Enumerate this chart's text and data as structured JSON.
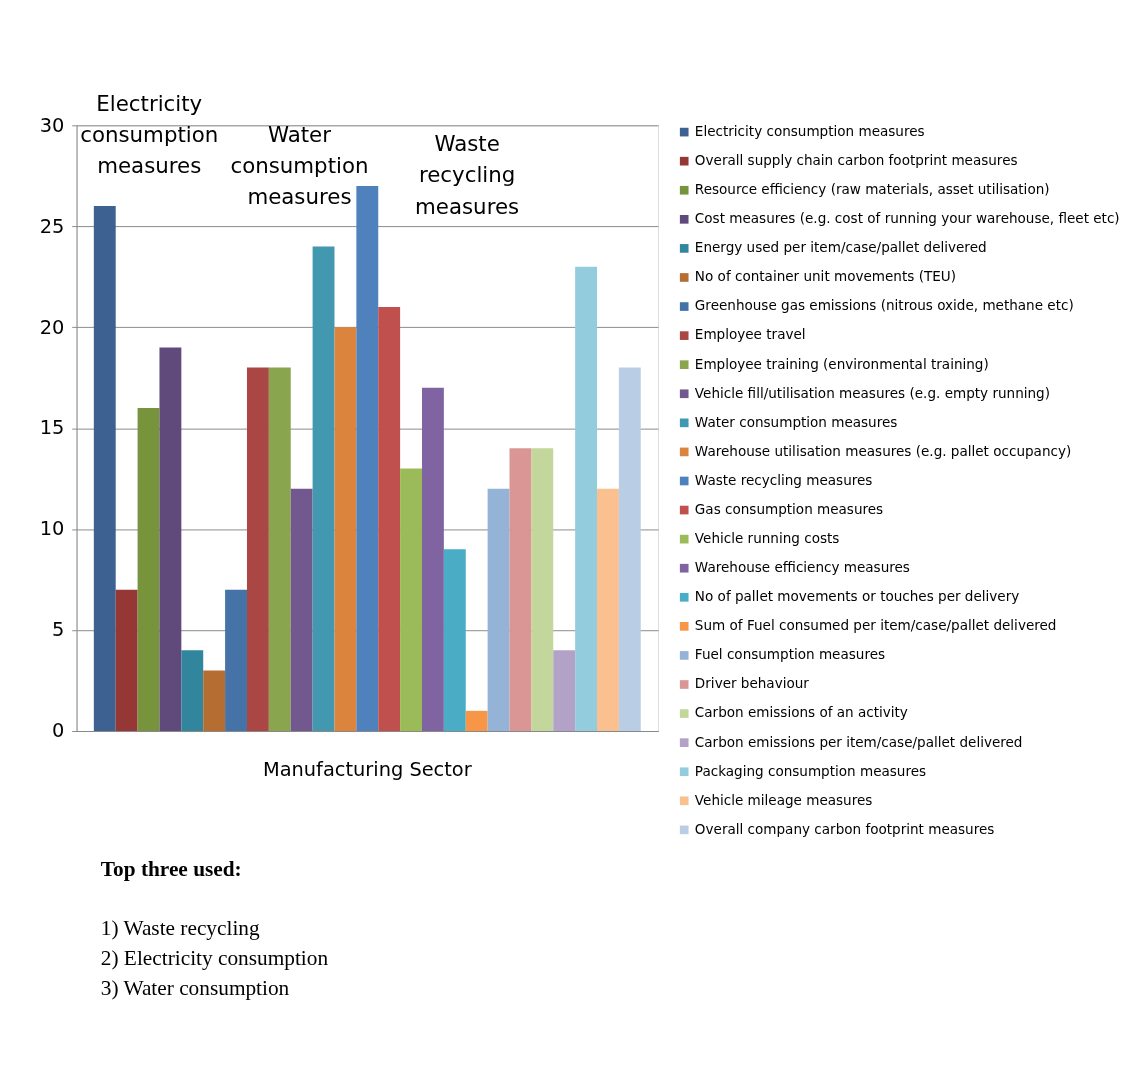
{
  "chart_data": {
    "type": "bar",
    "categories": [
      "Manufacturing Sector"
    ],
    "series": [
      {
        "name": "Electricity consumption measures",
        "color": "#3d6190",
        "values": [
          26
        ]
      },
      {
        "name": "Overall supply chain carbon footprint measures",
        "color": "#953735",
        "values": [
          7
        ]
      },
      {
        "name": "Resource efficiency (raw materials, asset utilisation)",
        "color": "#77933c",
        "values": [
          16
        ]
      },
      {
        "name": "Cost measures (e.g. cost of running your warehouse, fleet etc)",
        "color": "#604a7b",
        "values": [
          19
        ]
      },
      {
        "name": "Energy used per item/case/pallet delivered",
        "color": "#31859c",
        "values": [
          4
        ]
      },
      {
        "name": "No of container unit movements (TEU)",
        "color": "#b66d31",
        "values": [
          3
        ]
      },
      {
        "name": "Greenhouse gas emissions (nitrous oxide, methane etc)",
        "color": "#4572a7",
        "values": [
          7
        ]
      },
      {
        "name": "Employee travel",
        "color": "#aa4643",
        "values": [
          18
        ]
      },
      {
        "name": "Employee training (environmental training)",
        "color": "#89a54e",
        "values": [
          18
        ]
      },
      {
        "name": "Vehicle fill/utilisation measures (e.g. empty running)",
        "color": "#71588f",
        "values": [
          12
        ]
      },
      {
        "name": "Water consumption measures",
        "color": "#4198af",
        "values": [
          24
        ]
      },
      {
        "name": "Warehouse utilisation measures (e.g. pallet occupancy)",
        "color": "#db843d",
        "values": [
          20
        ]
      },
      {
        "name": "Waste recycling measures",
        "color": "#4f81bd",
        "values": [
          27
        ]
      },
      {
        "name": "Gas consumption measures",
        "color": "#c0504d",
        "values": [
          21
        ]
      },
      {
        "name": "Vehicle running costs",
        "color": "#9bbb59",
        "values": [
          13
        ]
      },
      {
        "name": "Warehouse efficiency measures",
        "color": "#8064a2",
        "values": [
          17
        ]
      },
      {
        "name": "No of pallet movements or touches per delivery",
        "color": "#4bacc6",
        "values": [
          9
        ]
      },
      {
        "name": "Sum of Fuel consumed per item/case/pallet delivered",
        "color": "#f79646",
        "values": [
          1
        ]
      },
      {
        "name": "Fuel consumption measures",
        "color": "#95b3d7",
        "values": [
          12
        ]
      },
      {
        "name": "Driver behaviour",
        "color": "#d99694",
        "values": [
          14
        ]
      },
      {
        "name": "Carbon emissions of an activity",
        "color": "#c3d69b",
        "values": [
          14
        ]
      },
      {
        "name": "Carbon emissions per item/case/pallet delivered",
        "color": "#b3a2c7",
        "values": [
          4
        ]
      },
      {
        "name": "Packaging consumption measures",
        "color": "#93cddd",
        "values": [
          23
        ]
      },
      {
        "name": "Vehicle mileage measures",
        "color": "#fac090",
        "values": [
          12
        ]
      },
      {
        "name": "Overall company carbon footprint measures",
        "color": "#b9cde5",
        "values": [
          18
        ]
      }
    ],
    "ylim": [
      0,
      30
    ],
    "yticks": [
      0,
      5,
      10,
      15,
      20,
      25,
      30
    ],
    "grid": "y",
    "legend": "right",
    "annotations": [
      "Electricity consumption measures",
      "Water consumption measures",
      "Waste recycling measures",
      "Top three used:",
      "1) Waste recycling",
      "2) Electricity consumption",
      "3) Water consumption"
    ]
  }
}
